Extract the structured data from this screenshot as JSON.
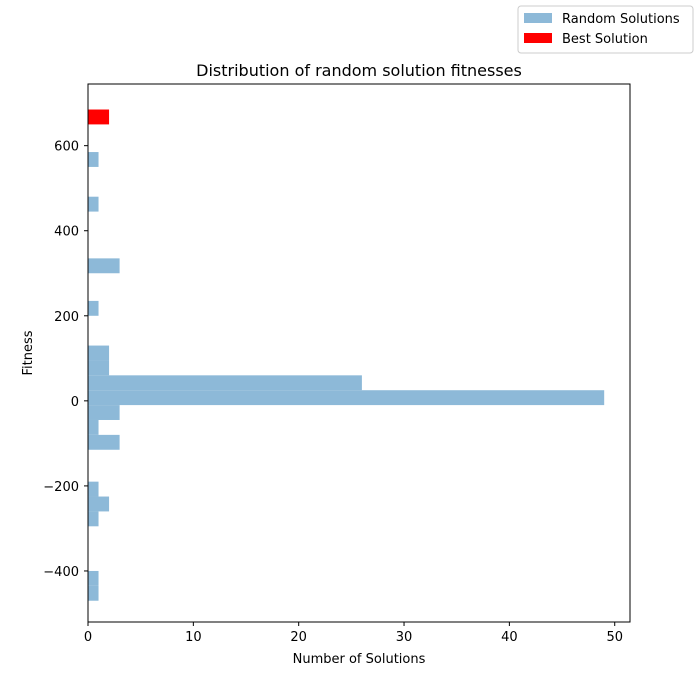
{
  "chart_data": {
    "type": "bar",
    "orientation": "horizontal",
    "title": "Distribution of random solution fitnesses",
    "xlabel": "Number of Solutions",
    "ylabel": "Fitness",
    "xlim": [
      0,
      51.45
    ],
    "ylim": [
      -520,
      745
    ],
    "xticks": [
      0,
      10,
      20,
      30,
      40,
      50
    ],
    "yticks": [
      -400,
      -200,
      0,
      200,
      400,
      600
    ],
    "grid": false,
    "legend_position": "top-right",
    "series": [
      {
        "name": "Random Solutions",
        "color": "#8db9d8",
        "bins": [
          {
            "from": -470,
            "to": -435,
            "count": 1
          },
          {
            "from": -435,
            "to": -400,
            "count": 1
          },
          {
            "from": -295,
            "to": -260,
            "count": 1
          },
          {
            "from": -260,
            "to": -225,
            "count": 2
          },
          {
            "from": -225,
            "to": -190,
            "count": 1
          },
          {
            "from": -115,
            "to": -80,
            "count": 3
          },
          {
            "from": -80,
            "to": -45,
            "count": 1
          },
          {
            "from": -45,
            "to": -10,
            "count": 3
          },
          {
            "from": -10,
            "to": 25,
            "count": 49
          },
          {
            "from": 25,
            "to": 60,
            "count": 26
          },
          {
            "from": 60,
            "to": 95,
            "count": 2
          },
          {
            "from": 95,
            "to": 130,
            "count": 2
          },
          {
            "from": 200,
            "to": 235,
            "count": 1
          },
          {
            "from": 300,
            "to": 335,
            "count": 3
          },
          {
            "from": 445,
            "to": 480,
            "count": 1
          },
          {
            "from": 550,
            "to": 585,
            "count": 1
          }
        ]
      },
      {
        "name": "Best Solution",
        "color": "#ff0000",
        "bins": [
          {
            "from": 650,
            "to": 685,
            "count": 2
          }
        ]
      }
    ]
  }
}
